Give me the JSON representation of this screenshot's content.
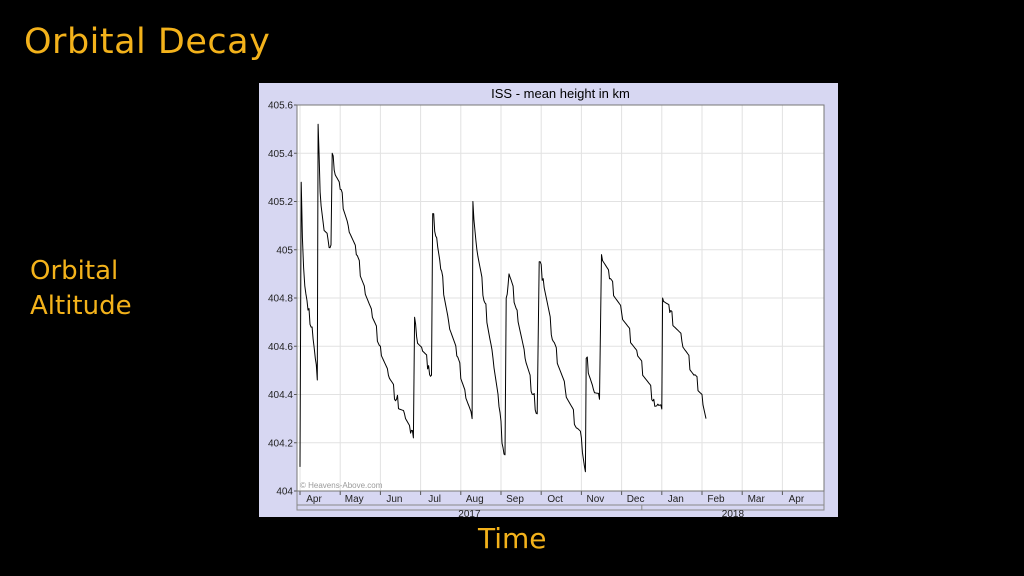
{
  "slide": {
    "title": "Orbital Decay",
    "side_label_lines": [
      "Orbital",
      "Altitude"
    ],
    "bottom_label": "Time"
  },
  "chart_data": {
    "type": "line",
    "title": "ISS - mean height in km",
    "xlabel": "",
    "ylabel": "",
    "ylim": [
      404,
      405.6
    ],
    "yticks": [
      "404",
      "404.2",
      "404.4",
      "404.6",
      "404.8",
      "405",
      "405.2",
      "405.4",
      "405.6"
    ],
    "month_ticks": [
      "Apr",
      "May",
      "Jun",
      "Jul",
      "Aug",
      "Sep",
      "Oct",
      "Nov",
      "Dec",
      "Jan",
      "Feb",
      "Mar",
      "Apr"
    ],
    "year_labels": [
      "2017",
      "2018"
    ],
    "watermark": "© Heavens-Above.com",
    "grid": true,
    "colors": {
      "line": "#000000",
      "frame": "#d7d7f2",
      "plot_bg": "#ffffff",
      "grid": "#e2e2e2"
    },
    "series": [
      {
        "values": [
          [
            0.0,
            404.1
          ],
          [
            0.03,
            405.28
          ],
          [
            0.06,
            405.05
          ],
          [
            0.12,
            404.85
          ],
          [
            0.2,
            404.75
          ],
          [
            0.3,
            404.68
          ],
          [
            0.38,
            404.55
          ],
          [
            0.43,
            404.46
          ],
          [
            0.45,
            405.52
          ],
          [
            0.5,
            405.24
          ],
          [
            0.6,
            405.08
          ],
          [
            0.7,
            405.04
          ],
          [
            0.77,
            405.02
          ],
          [
            0.8,
            405.4
          ],
          [
            0.85,
            405.33
          ],
          [
            1.0,
            405.25
          ],
          [
            1.2,
            405.1
          ],
          [
            1.4,
            404.98
          ],
          [
            1.6,
            404.85
          ],
          [
            1.8,
            404.72
          ],
          [
            2.0,
            404.6
          ],
          [
            2.2,
            404.48
          ],
          [
            2.4,
            404.38
          ],
          [
            2.6,
            404.32
          ],
          [
            2.75,
            404.24
          ],
          [
            2.82,
            404.22
          ],
          [
            2.85,
            404.72
          ],
          [
            2.9,
            404.64
          ],
          [
            3.05,
            404.58
          ],
          [
            3.2,
            404.52
          ],
          [
            3.27,
            404.48
          ],
          [
            3.3,
            405.15
          ],
          [
            3.4,
            405.05
          ],
          [
            3.5,
            404.92
          ],
          [
            3.7,
            404.7
          ],
          [
            3.9,
            404.56
          ],
          [
            4.1,
            404.42
          ],
          [
            4.28,
            404.3
          ],
          [
            4.3,
            405.2
          ],
          [
            4.4,
            405.0
          ],
          [
            4.6,
            404.78
          ],
          [
            4.8,
            404.55
          ],
          [
            4.95,
            404.35
          ],
          [
            5.05,
            404.18
          ],
          [
            5.1,
            404.15
          ],
          [
            5.13,
            404.8
          ],
          [
            5.2,
            404.9
          ],
          [
            5.4,
            404.75
          ],
          [
            5.6,
            404.55
          ],
          [
            5.8,
            404.4
          ],
          [
            5.9,
            404.32
          ],
          [
            5.95,
            404.95
          ],
          [
            6.05,
            404.88
          ],
          [
            6.3,
            404.62
          ],
          [
            6.6,
            404.42
          ],
          [
            6.9,
            404.26
          ],
          [
            7.0,
            404.22
          ],
          [
            7.1,
            404.08
          ],
          [
            7.12,
            404.55
          ],
          [
            7.3,
            404.42
          ],
          [
            7.45,
            404.38
          ],
          [
            7.5,
            404.98
          ],
          [
            7.7,
            404.88
          ],
          [
            8.0,
            404.74
          ],
          [
            8.4,
            404.56
          ],
          [
            8.8,
            404.38
          ],
          [
            8.9,
            404.36
          ],
          [
            9.0,
            404.34
          ],
          [
            9.02,
            404.8
          ],
          [
            9.2,
            404.74
          ],
          [
            9.5,
            404.62
          ],
          [
            9.8,
            404.48
          ],
          [
            10.0,
            404.4
          ],
          [
            10.1,
            404.3
          ]
        ]
      }
    ]
  }
}
